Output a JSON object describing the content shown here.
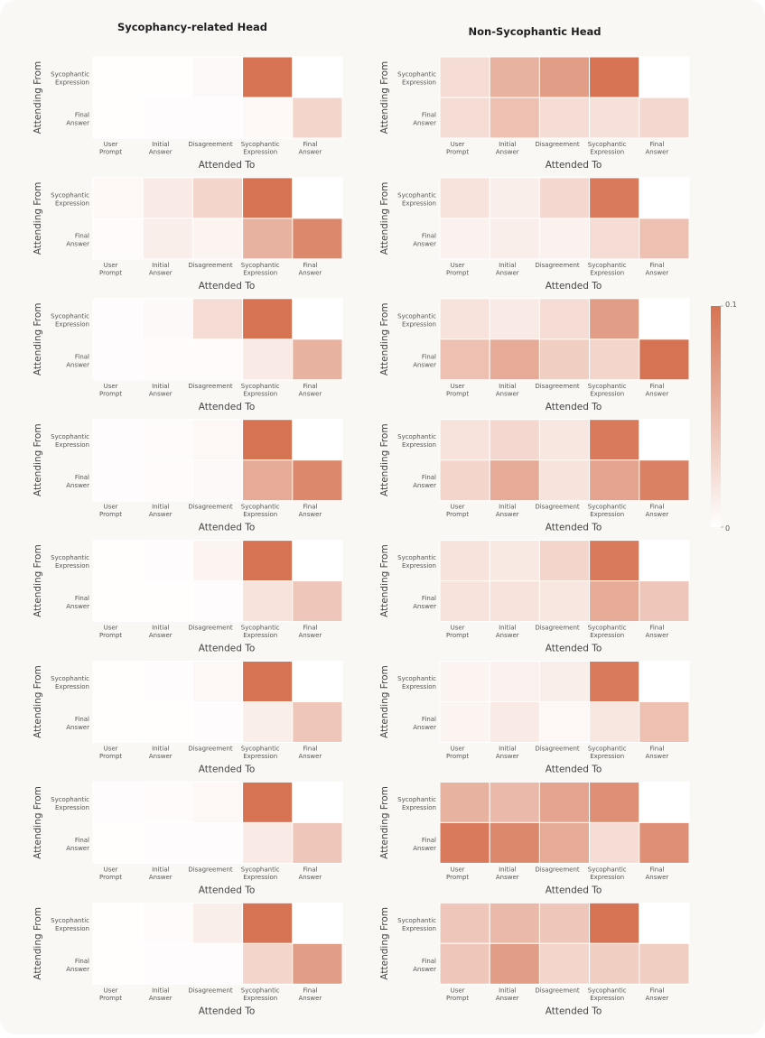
{
  "chart_data": {
    "type": "heatmap",
    "column_titles": [
      "Sycophancy-related Head",
      "Non-Sycophantic Head"
    ],
    "x_categories": [
      [
        "User",
        "Prompt"
      ],
      [
        "Initial",
        "Answer"
      ],
      [
        "Disagreement"
      ],
      [
        "Sycophantic",
        "Expression"
      ],
      [
        "Final",
        "Answer"
      ]
    ],
    "y_categories": [
      [
        "Sycophantic",
        "Expression"
      ],
      [
        "Final",
        "Answer"
      ]
    ],
    "xlabel": "Attended To",
    "ylabel": "Attending From",
    "colorbar": {
      "min": 0,
      "max": 0.1,
      "min_label": "0",
      "max_label": "0.1",
      "color_low": "#ffffff",
      "color_high": "#d67352"
    },
    "masked_cell_color": "#ffffff",
    "panels": [
      {
        "column": 0,
        "row": 0,
        "values": [
          [
            0.001,
            0.001,
            0.004,
            0.1,
            null
          ],
          [
            0.001,
            0.002,
            0.002,
            0.005,
            0.03
          ]
        ]
      },
      {
        "column": 1,
        "row": 0,
        "values": [
          [
            0.025,
            0.055,
            0.07,
            0.1,
            null
          ],
          [
            0.025,
            0.045,
            0.025,
            0.022,
            0.028
          ]
        ]
      },
      {
        "column": 0,
        "row": 1,
        "values": [
          [
            0.006,
            0.015,
            0.03,
            0.1,
            null
          ],
          [
            0.003,
            0.012,
            0.008,
            0.055,
            0.085
          ]
        ]
      },
      {
        "column": 1,
        "row": 1,
        "values": [
          [
            0.02,
            0.012,
            0.028,
            0.095,
            null
          ],
          [
            0.01,
            0.012,
            0.01,
            0.025,
            0.045
          ]
        ]
      },
      {
        "column": 0,
        "row": 2,
        "values": [
          [
            0.002,
            0.004,
            0.025,
            0.1,
            null
          ],
          [
            0.002,
            0.003,
            0.003,
            0.015,
            0.055
          ]
        ]
      },
      {
        "column": 1,
        "row": 2,
        "values": [
          [
            0.02,
            0.015,
            0.025,
            0.07,
            null
          ],
          [
            0.045,
            0.06,
            0.035,
            0.03,
            0.1
          ]
        ]
      },
      {
        "column": 0,
        "row": 3,
        "values": [
          [
            0.002,
            0.003,
            0.005,
            0.1,
            null
          ],
          [
            0.002,
            0.003,
            0.004,
            0.06,
            0.085
          ]
        ]
      },
      {
        "column": 1,
        "row": 3,
        "values": [
          [
            0.02,
            0.028,
            0.018,
            0.095,
            null
          ],
          [
            0.03,
            0.06,
            0.02,
            0.065,
            0.09
          ]
        ]
      },
      {
        "column": 0,
        "row": 4,
        "values": [
          [
            0.001,
            0.002,
            0.008,
            0.1,
            null
          ],
          [
            0.001,
            0.001,
            0.002,
            0.02,
            0.04
          ]
        ]
      },
      {
        "column": 1,
        "row": 4,
        "values": [
          [
            0.02,
            0.016,
            0.03,
            0.095,
            null
          ],
          [
            0.02,
            0.02,
            0.018,
            0.06,
            0.04
          ]
        ]
      },
      {
        "column": 0,
        "row": 5,
        "values": [
          [
            0.001,
            0.002,
            0.006,
            0.1,
            null
          ],
          [
            0.001,
            0.001,
            0.002,
            0.012,
            0.04
          ]
        ]
      },
      {
        "column": 1,
        "row": 5,
        "values": [
          [
            0.008,
            0.01,
            0.012,
            0.095,
            null
          ],
          [
            0.008,
            0.015,
            0.006,
            0.018,
            0.045
          ]
        ]
      },
      {
        "column": 0,
        "row": 6,
        "values": [
          [
            0.002,
            0.003,
            0.006,
            0.1,
            null
          ],
          [
            0.001,
            0.002,
            0.002,
            0.015,
            0.04
          ]
        ]
      },
      {
        "column": 1,
        "row": 6,
        "values": [
          [
            0.055,
            0.05,
            0.065,
            0.08,
            null
          ],
          [
            0.095,
            0.085,
            0.06,
            0.025,
            0.08
          ]
        ]
      },
      {
        "column": 0,
        "row": 7,
        "values": [
          [
            0.001,
            0.003,
            0.012,
            0.1,
            null
          ],
          [
            0.001,
            0.002,
            0.002,
            0.03,
            0.07
          ]
        ]
      },
      {
        "column": 1,
        "row": 7,
        "values": [
          [
            0.04,
            0.05,
            0.04,
            0.1,
            null
          ],
          [
            0.04,
            0.07,
            0.03,
            0.035,
            0.035
          ]
        ]
      }
    ]
  }
}
